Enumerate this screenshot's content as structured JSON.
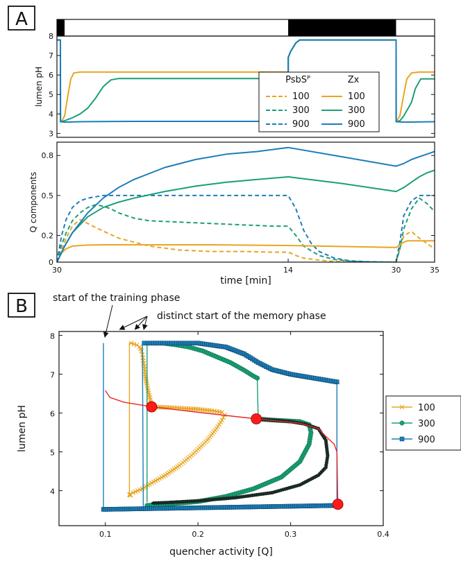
{
  "colors": {
    "s100": "#E8A521",
    "s300": "#1A9E77",
    "s900": "#1B7DB8",
    "marker_red": "#FF1A1A",
    "trace_red": "#E8262A"
  },
  "panel_a": {
    "label": "A"
  },
  "panel_b": {
    "label": "B"
  },
  "chart_data": [
    {
      "type": "line",
      "name": "light-regime",
      "segments": [
        {
          "from": 0,
          "to": 1,
          "state": "dark"
        },
        {
          "from": 1,
          "to": 30,
          "state": "light"
        },
        {
          "from": 30,
          "to": 44,
          "state": "dark"
        },
        {
          "from": 44,
          "to": 49,
          "state": "light"
        }
      ],
      "xlim": [
        0,
        49
      ]
    },
    {
      "type": "line",
      "name": "lumen-ph-vs-time",
      "ylabel": "lumen pH",
      "ylim": [
        2.8,
        8
      ],
      "yticks": [
        3,
        4,
        5,
        6,
        7,
        8
      ],
      "xlim": [
        0,
        49
      ],
      "legend": {
        "placement": "right",
        "col_headers": [
          "PsbSᴾ",
          "Zx"
        ],
        "entries": [
          "100",
          "300",
          "900"
        ]
      },
      "series": [
        {
          "name": "Zx 100",
          "style": "solid",
          "color": "#E8A521",
          "x": [
            0,
            0.45,
            0.46,
            0.6,
            1,
            1.4,
            1.8,
            2.2,
            3,
            5,
            10,
            20,
            30,
            30.01,
            30.3,
            31,
            31.5,
            32,
            40,
            44,
            44.01,
            44.5,
            45,
            45.4,
            46,
            47,
            49
          ],
          "y": [
            7.8,
            7.8,
            3.6,
            3.62,
            3.9,
            4.9,
            5.8,
            6.1,
            6.15,
            6.15,
            6.15,
            6.15,
            6.15,
            6.9,
            7.2,
            7.65,
            7.8,
            7.8,
            7.8,
            7.8,
            3.6,
            3.9,
            5.0,
            5.8,
            6.1,
            6.15,
            6.15
          ]
        },
        {
          "name": "Zx 300",
          "style": "solid",
          "color": "#1A9E77",
          "x": [
            0,
            0.45,
            0.46,
            1,
            2,
            3,
            4,
            5,
            6,
            7,
            8,
            10,
            20,
            30,
            30.01,
            30.3,
            31,
            31.5,
            32,
            40,
            44,
            44.01,
            44.5,
            45,
            46,
            46.5,
            47.2,
            49
          ],
          "y": [
            7.8,
            7.8,
            3.6,
            3.65,
            3.8,
            4.0,
            4.3,
            4.8,
            5.4,
            5.75,
            5.82,
            5.82,
            5.82,
            5.82,
            6.9,
            7.2,
            7.65,
            7.8,
            7.8,
            7.8,
            7.8,
            3.6,
            3.65,
            3.9,
            4.6,
            5.3,
            5.8,
            5.8
          ]
        },
        {
          "name": "Zx 900",
          "style": "solid",
          "color": "#1B7DB8",
          "x": [
            0,
            0.45,
            0.46,
            1,
            3,
            10,
            20,
            30,
            30.01,
            30.3,
            31,
            31.5,
            32,
            40,
            44,
            44.01,
            45,
            49
          ],
          "y": [
            7.8,
            7.8,
            3.6,
            3.58,
            3.6,
            3.62,
            3.62,
            3.62,
            6.9,
            7.2,
            7.65,
            7.8,
            7.8,
            7.8,
            7.8,
            3.6,
            3.58,
            3.6
          ]
        }
      ]
    },
    {
      "type": "line",
      "name": "q-components-vs-time",
      "ylabel": "Q components",
      "xlabel": "time [min]",
      "ylim": [
        0,
        0.9
      ],
      "yticks": [
        0,
        0.2,
        0.5,
        0.8
      ],
      "ytick_labels": [
        "0",
        "0.2",
        "0.5",
        "0.8"
      ],
      "xlim": [
        0,
        49
      ],
      "xticks": [
        0,
        30,
        44,
        49
      ],
      "xtick_labels": [
        "30",
        "14",
        "30",
        "35"
      ],
      "series": [
        {
          "name": "PsbS 100",
          "style": "dashed",
          "color": "#E8A521",
          "x": [
            0,
            0.6,
            1.2,
            2,
            3,
            5,
            8,
            12,
            16,
            20,
            24,
            28,
            30,
            31,
            32,
            34,
            36,
            38,
            40,
            42,
            44,
            44.5,
            45,
            46,
            47,
            48,
            49
          ],
          "y": [
            0,
            0.09,
            0.18,
            0.27,
            0.32,
            0.26,
            0.18,
            0.12,
            0.09,
            0.08,
            0.08,
            0.075,
            0.075,
            0.05,
            0.03,
            0.015,
            0.005,
            0.002,
            0.001,
            0,
            0,
            0.1,
            0.2,
            0.23,
            0.18,
            0.14,
            0.1
          ]
        },
        {
          "name": "PsbS 300",
          "style": "dashed",
          "color": "#1A9E77",
          "x": [
            0,
            0.6,
            1.2,
            2,
            3,
            4,
            5,
            6,
            7,
            8,
            10,
            12,
            16,
            20,
            24,
            28,
            30,
            31,
            32,
            34,
            36,
            38,
            40,
            42,
            44,
            44.5,
            45,
            46,
            47,
            48,
            49
          ],
          "y": [
            0,
            0.13,
            0.22,
            0.31,
            0.37,
            0.41,
            0.43,
            0.42,
            0.4,
            0.37,
            0.33,
            0.31,
            0.3,
            0.29,
            0.28,
            0.27,
            0.27,
            0.2,
            0.12,
            0.05,
            0.02,
            0.008,
            0.003,
            0.001,
            0,
            0.1,
            0.25,
            0.4,
            0.48,
            0.44,
            0.38
          ]
        },
        {
          "name": "PsbS 900",
          "style": "dashed",
          "color": "#1B7DB8",
          "x": [
            0,
            0.6,
            1.2,
            2,
            3,
            4,
            5,
            6,
            8,
            10,
            12,
            16,
            20,
            24,
            28,
            30,
            31,
            32,
            33,
            34,
            36,
            38,
            40,
            42,
            44,
            44.5,
            45,
            46,
            47,
            48,
            49
          ],
          "y": [
            0,
            0.2,
            0.32,
            0.41,
            0.46,
            0.48,
            0.49,
            0.5,
            0.5,
            0.5,
            0.5,
            0.5,
            0.5,
            0.5,
            0.5,
            0.5,
            0.4,
            0.24,
            0.14,
            0.08,
            0.03,
            0.01,
            0.004,
            0.001,
            0,
            0.15,
            0.35,
            0.46,
            0.5,
            0.5,
            0.5
          ]
        },
        {
          "name": "Zx 100",
          "style": "solid",
          "color": "#E8A521",
          "x": [
            0,
            0.6,
            1.2,
            2,
            3,
            4,
            6,
            10,
            20,
            30,
            44,
            44.5,
            45,
            45.5,
            46,
            49
          ],
          "y": [
            0,
            0.07,
            0.1,
            0.12,
            0.125,
            0.128,
            0.13,
            0.13,
            0.13,
            0.125,
            0.11,
            0.13,
            0.15,
            0.16,
            0.16,
            0.16
          ]
        },
        {
          "name": "Zx 300",
          "style": "solid",
          "color": "#1A9E77",
          "x": [
            0,
            1,
            2,
            4,
            6,
            8,
            10,
            14,
            18,
            22,
            26,
            30,
            37,
            44,
            45,
            46,
            47,
            48,
            49
          ],
          "y": [
            0,
            0.12,
            0.22,
            0.34,
            0.41,
            0.45,
            0.48,
            0.53,
            0.57,
            0.6,
            0.62,
            0.64,
            0.59,
            0.53,
            0.56,
            0.6,
            0.64,
            0.67,
            0.69
          ]
        },
        {
          "name": "Zx 900",
          "style": "solid",
          "color": "#1B7DB8",
          "x": [
            0,
            1,
            2,
            4,
            6,
            8,
            10,
            14,
            18,
            22,
            26,
            30,
            37,
            44,
            45,
            46,
            47,
            48,
            49
          ],
          "y": [
            0,
            0.12,
            0.22,
            0.37,
            0.48,
            0.56,
            0.62,
            0.71,
            0.77,
            0.81,
            0.83,
            0.86,
            0.79,
            0.72,
            0.74,
            0.77,
            0.79,
            0.81,
            0.83
          ]
        }
      ]
    },
    {
      "type": "scatter",
      "name": "lumen-ph-vs-quencher",
      "xlabel": "quencher activity [Q]",
      "ylabel": "lumen pH",
      "xlim": [
        0.05,
        0.4
      ],
      "ylim": [
        3.1,
        8.1
      ],
      "xticks": [
        0.1,
        0.2,
        0.3,
        0.4
      ],
      "yticks": [
        4,
        5,
        6,
        7,
        8
      ],
      "legend": {
        "placement": "right",
        "entries": [
          "100",
          "300",
          "900"
        ]
      },
      "annotations": [
        {
          "text": "start of the training phase",
          "arrow_to": [
            0.098,
            7.95
          ]
        },
        {
          "text": "distinct start of the memory phase",
          "arrows_to": [
            [
              0.126,
              7.95
            ],
            [
              0.138,
              7.95
            ],
            [
              0.143,
              7.95
            ]
          ]
        }
      ],
      "series": [
        {
          "name": "100",
          "marker": "x",
          "color": "#E8A521",
          "x": [
            0.127,
            0.127,
            0.13,
            0.14,
            0.15,
            0.165,
            0.18,
            0.195,
            0.21,
            0.22,
            0.226,
            0.229,
            0.226,
            0.215,
            0.2,
            0.185,
            0.172,
            0.162,
            0.155,
            0.151,
            0.15,
            0.148,
            0.145,
            0.143,
            0.142,
            0.141,
            0.14,
            0.139,
            0.137,
            0.134,
            0.128,
            0.126,
            0.126,
            0.127
          ],
          "y": [
            3.88,
            3.9,
            3.95,
            4.05,
            4.2,
            4.4,
            4.65,
            4.95,
            5.3,
            5.6,
            5.82,
            5.95,
            6.02,
            6.06,
            6.1,
            6.12,
            6.14,
            6.15,
            6.15,
            6.15,
            6.22,
            6.4,
            6.7,
            7.0,
            7.2,
            7.35,
            7.5,
            7.6,
            7.7,
            7.75,
            7.8,
            7.8,
            3.9,
            3.88
          ]
        },
        {
          "name": "300",
          "marker": "o",
          "color": "#1A9E77",
          "x": [
            0.145,
            0.15,
            0.17,
            0.2,
            0.23,
            0.26,
            0.29,
            0.31,
            0.32,
            0.322,
            0.32,
            0.31,
            0.28,
            0.27,
            0.265,
            0.264,
            0.264,
            0.26,
            0.25,
            0.235,
            0.22,
            0.205,
            0.19,
            0.175,
            0.162,
            0.153,
            0.147,
            0.145,
            0.145
          ],
          "y": [
            3.62,
            3.63,
            3.66,
            3.72,
            3.85,
            4.05,
            4.35,
            4.75,
            5.2,
            5.5,
            5.7,
            5.78,
            5.82,
            5.84,
            5.85,
            6.9,
            6.9,
            6.95,
            7.1,
            7.3,
            7.45,
            7.6,
            7.7,
            7.76,
            7.8,
            7.8,
            7.8,
            7.8,
            3.7
          ]
        },
        {
          "name": "900",
          "marker": "s",
          "color": "#1B7DB8",
          "x": [
            0.098,
            0.098,
            0.1,
            0.15,
            0.2,
            0.25,
            0.3,
            0.35,
            0.35,
            0.345,
            0.335,
            0.32,
            0.3,
            0.28,
            0.265,
            0.25,
            0.23,
            0.2,
            0.17,
            0.15,
            0.142,
            0.14,
            0.141
          ],
          "y": [
            7.8,
            3.52,
            3.52,
            3.54,
            3.56,
            3.58,
            3.6,
            3.62,
            6.8,
            6.82,
            6.86,
            6.92,
            7.0,
            7.12,
            7.3,
            7.52,
            7.7,
            7.8,
            7.8,
            7.8,
            7.8,
            7.8,
            3.6
          ]
        },
        {
          "name": "gray",
          "marker": "o",
          "color": "#000000",
          "x": [
            0.265,
            0.28,
            0.3,
            0.315,
            0.33,
            0.338,
            0.34,
            0.338,
            0.33,
            0.31,
            0.28,
            0.24,
            0.2,
            0.17,
            0.15
          ],
          "y": [
            5.84,
            5.82,
            5.78,
            5.72,
            5.6,
            5.3,
            4.9,
            4.6,
            4.4,
            4.15,
            3.95,
            3.82,
            3.74,
            3.7,
            3.68
          ]
        },
        {
          "name": "red-trace",
          "marker": "none",
          "color": "#E8262A",
          "x": [
            0.1,
            0.105,
            0.12,
            0.15,
            0.2,
            0.263,
            0.31,
            0.33,
            0.338,
            0.347,
            0.35,
            0.351
          ],
          "y": [
            6.58,
            6.4,
            6.28,
            6.16,
            6.02,
            5.85,
            5.74,
            5.6,
            5.4,
            5.2,
            5.0,
            3.65
          ]
        }
      ],
      "highlight_points": [
        {
          "x": 0.15,
          "y": 6.16
        },
        {
          "x": 0.263,
          "y": 5.85
        },
        {
          "x": 0.351,
          "y": 3.65
        }
      ]
    }
  ]
}
